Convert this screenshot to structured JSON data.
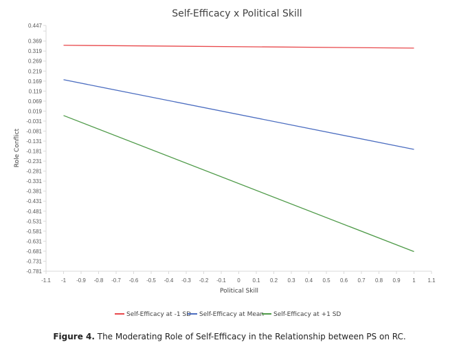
{
  "chart_data": {
    "type": "line",
    "title": "Self-Efficacy x Political Skill",
    "xlabel": "Political Skill",
    "ylabel": "Role Conflict",
    "xlim": [
      -1.1,
      1.1
    ],
    "ylim": [
      -0.781,
      0.447
    ],
    "x_ticks": [
      "-1.1",
      "-1",
      "-0.9",
      "-0.8",
      "-0.7",
      "-0.6",
      "-0.5",
      "-0.4",
      "-0.3",
      "-0.2",
      "-0.1",
      "0",
      "0.1",
      "0.2",
      "0.3",
      "0.4",
      "0.5",
      "0.6",
      "0.7",
      "0.8",
      "0.9",
      "1",
      "1.1"
    ],
    "y_ticks": [
      "0.447",
      "0.369",
      "0.319",
      "0.269",
      "0.219",
      "0.169",
      "0.119",
      "0.069",
      "0.019",
      "-0.031",
      "-0.081",
      "-0.131",
      "-0.181",
      "-0.231",
      "-0.281",
      "-0.331",
      "-0.381",
      "-0.431",
      "-0.481",
      "-0.531",
      "-0.581",
      "-0.631",
      "-0.681",
      "-0.731",
      "-0.781"
    ],
    "x": [
      -1,
      1
    ],
    "series": [
      {
        "name": "Self-Efficacy at -1 SD",
        "values": [
          0.348,
          0.334
        ],
        "color": "#e8474a"
      },
      {
        "name": "Self-Efficacy at Mean",
        "values": [
          0.176,
          -0.172
        ],
        "color": "#4a6cc0"
      },
      {
        "name": "Self-Efficacy at +1 SD",
        "values": [
          -0.003,
          -0.683
        ],
        "color": "#4e9a48"
      }
    ],
    "grid": false,
    "legend_position": "bottom"
  },
  "caption": {
    "label": "Figure 4.",
    "text": " The Moderating Role of Self-Efficacy in the Relationship between PS on RC."
  }
}
